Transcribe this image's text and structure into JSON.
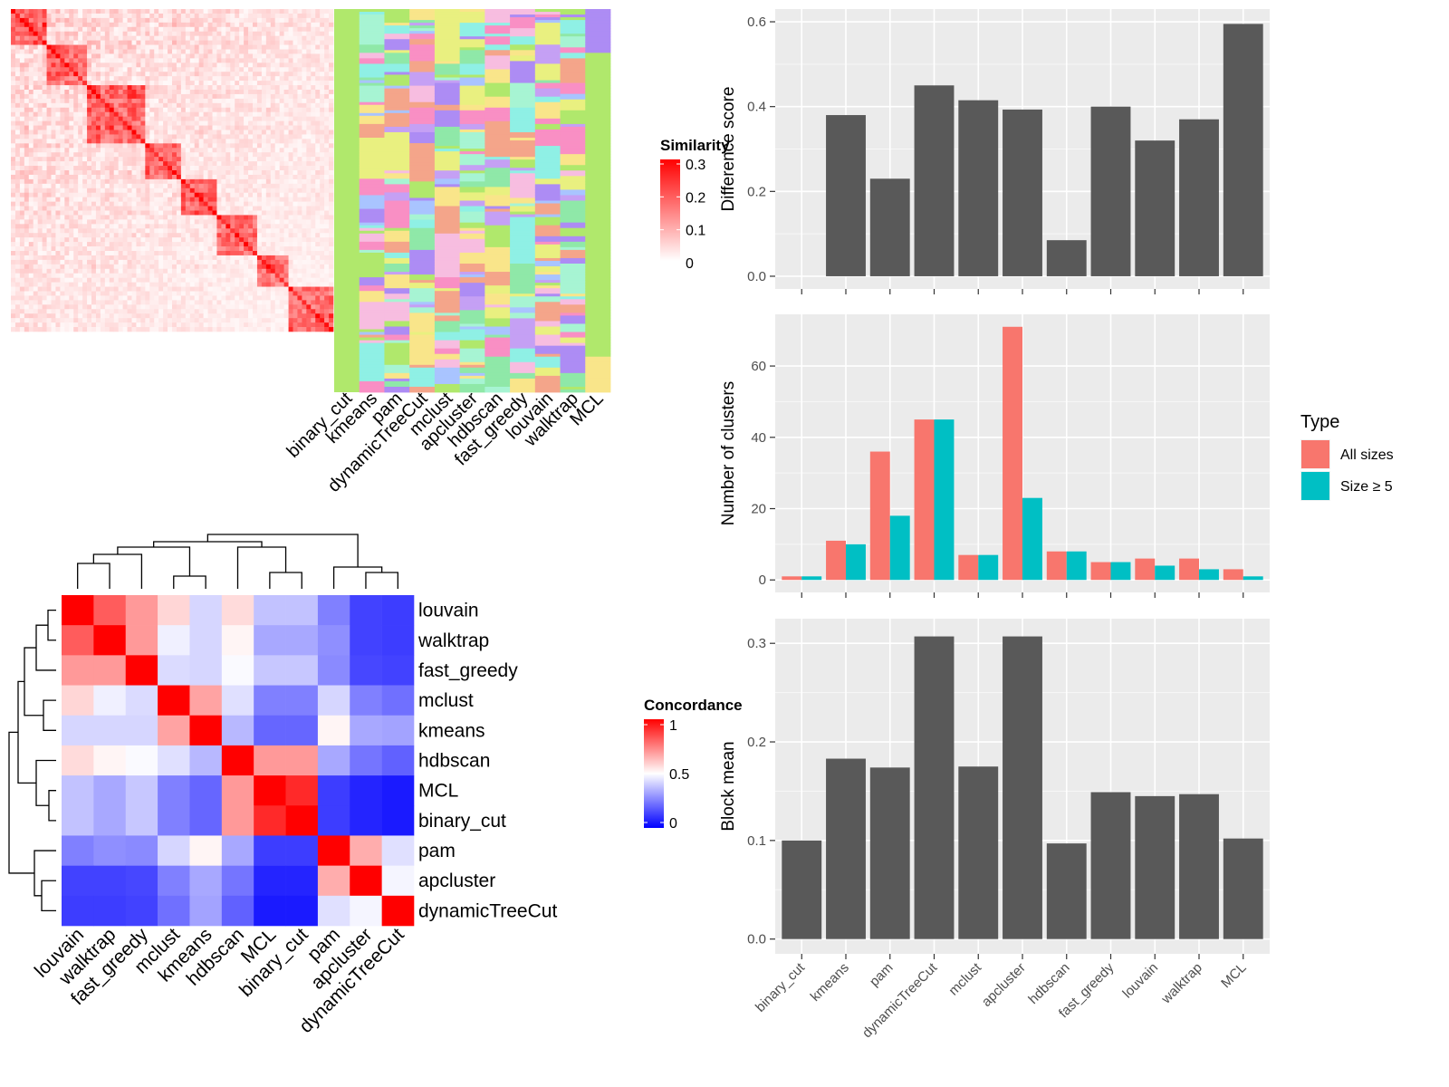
{
  "chart_data": [
    {
      "type": "heatmap",
      "panel": "similarity-heatmap",
      "legend_title": "Similarity",
      "legend_ticks": [
        "0.3",
        "0.2",
        "0.1",
        "0"
      ],
      "legend_values": [
        0.3,
        0.2,
        0.1,
        0
      ],
      "colors": {
        "low": "#ffffff",
        "high": "#ff0000"
      },
      "description_of_structure": "diagonal block similarity matrix"
    },
    {
      "type": "heatmap",
      "panel": "cluster-membership-annotation",
      "columns": [
        "binary_cut",
        "kmeans",
        "pam",
        "dynamicTreeCut",
        "mclust",
        "apcluster",
        "hdbscan",
        "fast_greedy",
        "louvain",
        "walktrap",
        "MCL"
      ]
    },
    {
      "type": "heatmap",
      "panel": "concordance-heatmap",
      "legend_title": "Concordance",
      "legend_ticks": [
        "1",
        "0.5",
        "0"
      ],
      "legend_values": [
        1,
        0.5,
        0
      ],
      "colors": {
        "low": "#0000ff",
        "mid": "#ffffff",
        "high": "#ff0000"
      },
      "labels": [
        "louvain",
        "walktrap",
        "fast_greedy",
        "mclust",
        "kmeans",
        "hdbscan",
        "MCL",
        "binary_cut",
        "pam",
        "apcluster",
        "dynamicTreeCut"
      ],
      "matrix": [
        [
          1.0,
          0.82,
          0.7,
          0.58,
          0.42,
          0.57,
          0.38,
          0.38,
          0.25,
          0.13,
          0.12
        ],
        [
          0.82,
          1.0,
          0.7,
          0.47,
          0.42,
          0.52,
          0.33,
          0.33,
          0.28,
          0.13,
          0.12
        ],
        [
          0.7,
          0.7,
          1.0,
          0.43,
          0.42,
          0.49,
          0.39,
          0.39,
          0.27,
          0.14,
          0.13
        ],
        [
          0.58,
          0.47,
          0.43,
          1.0,
          0.68,
          0.44,
          0.25,
          0.25,
          0.42,
          0.25,
          0.22
        ],
        [
          0.42,
          0.42,
          0.42,
          0.68,
          1.0,
          0.36,
          0.2,
          0.2,
          0.52,
          0.33,
          0.32
        ],
        [
          0.57,
          0.52,
          0.49,
          0.44,
          0.36,
          1.0,
          0.7,
          0.7,
          0.33,
          0.23,
          0.19
        ],
        [
          0.38,
          0.33,
          0.39,
          0.25,
          0.2,
          0.7,
          1.0,
          0.92,
          0.12,
          0.07,
          0.05
        ],
        [
          0.38,
          0.33,
          0.39,
          0.25,
          0.2,
          0.7,
          0.92,
          1.0,
          0.12,
          0.07,
          0.05
        ],
        [
          0.25,
          0.28,
          0.27,
          0.42,
          0.52,
          0.33,
          0.12,
          0.12,
          1.0,
          0.66,
          0.44
        ],
        [
          0.13,
          0.13,
          0.14,
          0.25,
          0.33,
          0.23,
          0.07,
          0.07,
          0.66,
          1.0,
          0.48
        ],
        [
          0.12,
          0.12,
          0.13,
          0.22,
          0.32,
          0.19,
          0.05,
          0.05,
          0.44,
          0.48,
          1.0
        ]
      ]
    },
    {
      "type": "bar",
      "panel": "difference-score",
      "categories": [
        "binary_cut",
        "kmeans",
        "pam",
        "dynamicTreeCut",
        "mclust",
        "apcluster",
        "hdbscan",
        "fast_greedy",
        "louvain",
        "walktrap",
        "MCL"
      ],
      "values": [
        0.0,
        0.38,
        0.23,
        0.45,
        0.415,
        0.393,
        0.085,
        0.4,
        0.32,
        0.37,
        0.595
      ],
      "ylabel": "Difference score",
      "ylim": [
        -0.03,
        0.63
      ],
      "yticks": [
        0.0,
        0.2,
        0.4,
        0.6
      ],
      "ytick_labels": [
        "0.0",
        "0.2",
        "0.4",
        "0.6"
      ],
      "bar_color": "#595959",
      "grid": true
    },
    {
      "type": "bar",
      "panel": "number-of-clusters",
      "categories": [
        "binary_cut",
        "kmeans",
        "pam",
        "dynamicTreeCut",
        "mclust",
        "apcluster",
        "hdbscan",
        "fast_greedy",
        "louvain",
        "walktrap",
        "MCL"
      ],
      "series": [
        {
          "name": "All sizes",
          "color": "#F8766D",
          "values": [
            1,
            11,
            36,
            45,
            7,
            71,
            8,
            5,
            6,
            6,
            3
          ]
        },
        {
          "name": "Size ≥ 5",
          "color": "#00BFC4",
          "values": [
            1,
            10,
            18,
            45,
            7,
            23,
            8,
            5,
            4,
            3,
            1
          ]
        }
      ],
      "ylabel": "Number of clusters",
      "ylim": [
        -3.5,
        74.5
      ],
      "yticks": [
        0,
        20,
        40,
        60
      ],
      "ytick_labels": [
        "0",
        "20",
        "40",
        "60"
      ],
      "legend_title": "Type",
      "legend_position": "right",
      "grid": true
    },
    {
      "type": "bar",
      "panel": "block-mean",
      "categories": [
        "binary_cut",
        "kmeans",
        "pam",
        "dynamicTreeCut",
        "mclust",
        "apcluster",
        "hdbscan",
        "fast_greedy",
        "louvain",
        "walktrap",
        "MCL"
      ],
      "values": [
        0.1,
        0.183,
        0.174,
        0.307,
        0.175,
        0.307,
        0.097,
        0.149,
        0.145,
        0.147,
        0.102
      ],
      "ylabel": "Block mean",
      "ylim": [
        -0.015,
        0.325
      ],
      "yticks": [
        0.0,
        0.1,
        0.2,
        0.3
      ],
      "ytick_labels": [
        "0.0",
        "0.1",
        "0.2",
        "0.3"
      ],
      "bar_color": "#595959",
      "grid": true
    }
  ]
}
